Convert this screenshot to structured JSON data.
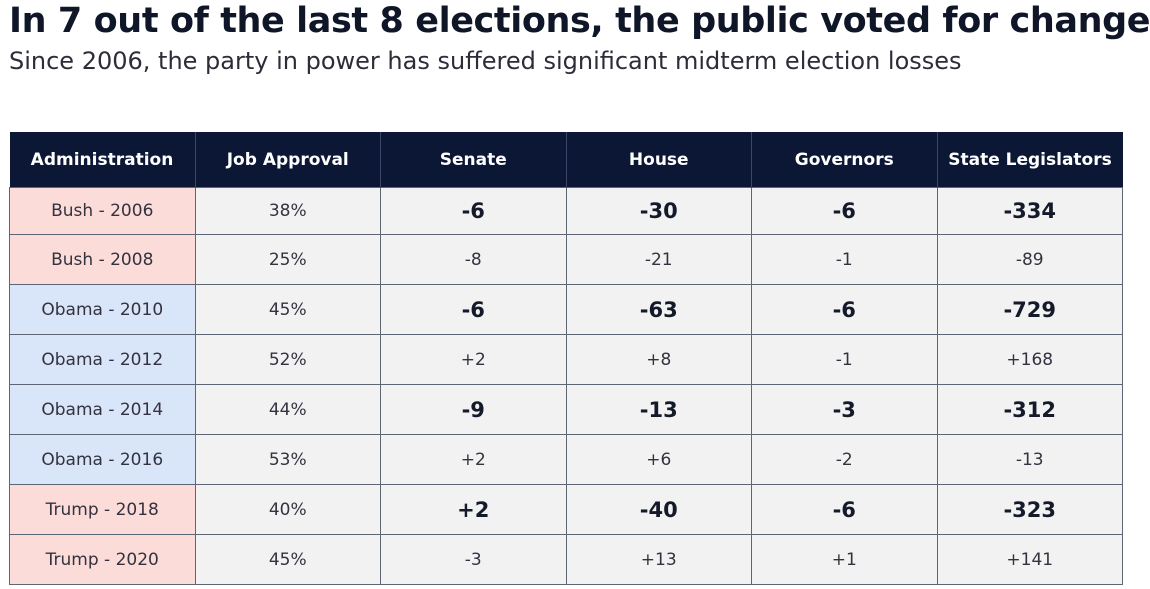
{
  "title": "In 7 out of the last 8 elections, the public voted for change",
  "subtitle": "Since 2006, the party in power has suffered significant midterm election losses",
  "colors": {
    "header_background": "#0b1735",
    "header_text": "#ffffff",
    "republican_row": "#fcdcd8",
    "democrat_row": "#d9e5f8",
    "cell_background": "#f2f2f2"
  },
  "chart_data": {
    "type": "table",
    "columns": [
      "Administration",
      "Job Approval",
      "Senate",
      "House",
      "Governors",
      "State Legislators"
    ],
    "rows": [
      {
        "administration": "Bush - 2006",
        "party": "bush",
        "emphasis": true,
        "job_approval": "38%",
        "senate": "-6",
        "house": "-30",
        "governors": "-6",
        "state_legislators": "-334"
      },
      {
        "administration": "Bush - 2008",
        "party": "bush",
        "emphasis": false,
        "job_approval": "25%",
        "senate": "-8",
        "house": "-21",
        "governors": "-1",
        "state_legislators": "-89"
      },
      {
        "administration": "Obama - 2010",
        "party": "obama",
        "emphasis": true,
        "job_approval": "45%",
        "senate": "-6",
        "house": "-63",
        "governors": "-6",
        "state_legislators": "-729"
      },
      {
        "administration": "Obama - 2012",
        "party": "obama",
        "emphasis": false,
        "job_approval": "52%",
        "senate": "+2",
        "house": "+8",
        "governors": "-1",
        "state_legislators": "+168"
      },
      {
        "administration": "Obama - 2014",
        "party": "obama",
        "emphasis": true,
        "job_approval": "44%",
        "senate": "-9",
        "house": "-13",
        "governors": "-3",
        "state_legislators": "-312"
      },
      {
        "administration": "Obama - 2016",
        "party": "obama",
        "emphasis": false,
        "job_approval": "53%",
        "senate": "+2",
        "house": "+6",
        "governors": "-2",
        "state_legislators": "-13"
      },
      {
        "administration": "Trump - 2018",
        "party": "trump",
        "emphasis": true,
        "job_approval": "40%",
        "senate": "+2",
        "house": "-40",
        "governors": "-6",
        "state_legislators": "-323"
      },
      {
        "administration": "Trump - 2020",
        "party": "trump",
        "emphasis": false,
        "job_approval": "45%",
        "senate": "-3",
        "house": "+13",
        "governors": "+1",
        "state_legislators": "+141"
      }
    ]
  }
}
